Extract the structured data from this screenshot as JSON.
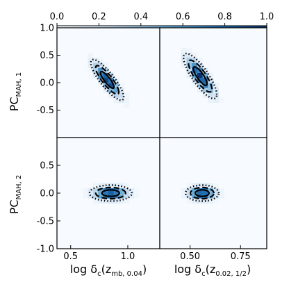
{
  "chart_data": {
    "type": "heatmap",
    "colormap": {
      "name": "Blues",
      "range": [
        0.0,
        1.0
      ],
      "ticks": [
        "0.0",
        "0.2",
        "0.4",
        "0.6",
        "0.8",
        "1.0"
      ],
      "low_color": "#f7fbff",
      "high_color": "#08306b"
    },
    "shared_axes": {
      "y_range": [
        -1.0,
        1.0
      ],
      "top_row_yticks": [
        "1.0",
        "0.5",
        "0.0",
        "-0.5"
      ],
      "bottom_row_yticks": [
        "0.5",
        "0.0",
        "-0.5",
        "-1.0"
      ],
      "left_col_xticks": [
        "0.5",
        "1.0"
      ],
      "right_col_xticks": [
        "0.50",
        "0.75"
      ]
    },
    "labels": {
      "y_top": "PC",
      "y_top_sub": "MAH, 1",
      "y_bottom": "PC",
      "y_bottom_sub": "MAH, 2",
      "x_left": "log δ",
      "x_left_sub1": "c",
      "x_left_mid": "(z",
      "x_left_sub2": "mb, 0.04",
      "x_left_end": ")",
      "x_right": "log δ",
      "x_right_sub1": "c",
      "x_right_mid": "(z",
      "x_right_sub2": "0.02, 1/2",
      "x_right_end": ")"
    },
    "panels": [
      {
        "id": "top-left",
        "row": 0,
        "col": 0,
        "x_range": [
          0.38,
          1.28
        ],
        "center": [
          0.82,
          0.05
        ],
        "sigma": [
          0.07,
          0.18
        ],
        "rho": -0.85,
        "contour_levels": {
          "inner": 0.7,
          "dashed": 0.35,
          "dotted": 0.12
        }
      },
      {
        "id": "top-right",
        "row": 0,
        "col": 1,
        "x_range": [
          0.35,
          0.88
        ],
        "center": [
          0.55,
          0.12
        ],
        "sigma": [
          0.04,
          0.2
        ],
        "rho": -0.82,
        "contour_levels": {
          "inner": 0.7,
          "dashed": 0.35,
          "dotted": 0.12
        }
      },
      {
        "id": "bottom-left",
        "row": 1,
        "col": 0,
        "x_range": [
          0.38,
          1.28
        ],
        "center": [
          0.85,
          0.0
        ],
        "sigma": [
          0.09,
          0.07
        ],
        "rho": 0.0,
        "contour_levels": {
          "inner": 0.7,
          "dashed": 0.35,
          "dotted": 0.12
        }
      },
      {
        "id": "bottom-right",
        "row": 1,
        "col": 1,
        "x_range": [
          0.35,
          0.88
        ],
        "center": [
          0.56,
          0.0
        ],
        "sigma": [
          0.04,
          0.07
        ],
        "rho": 0.0,
        "contour_levels": {
          "inner": 0.7,
          "dashed": 0.35,
          "dotted": 0.12
        }
      }
    ]
  }
}
